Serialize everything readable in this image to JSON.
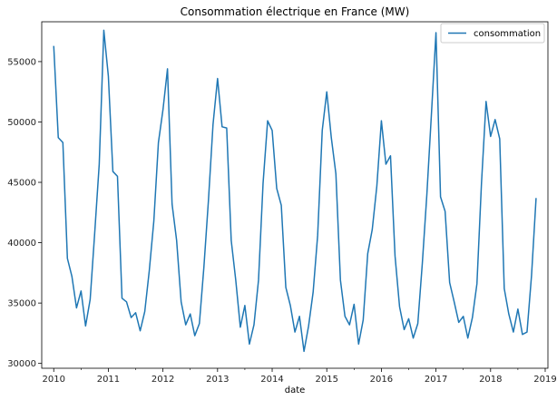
{
  "chart_data": {
    "type": "line",
    "title": "Consommation électrique en France (MW)",
    "xlabel": "date",
    "ylabel": "",
    "legend": {
      "placement": "top-right",
      "entries": [
        "consommation"
      ]
    },
    "grid": false,
    "xlim": [
      2009.78,
      2019.05
    ],
    "ylim": [
      29600,
      58300
    ],
    "x_ticks": [
      2010,
      2011,
      2012,
      2013,
      2014,
      2015,
      2016,
      2017,
      2018,
      2019
    ],
    "y_ticks": [
      30000,
      35000,
      40000,
      45000,
      50000,
      55000
    ],
    "series": [
      {
        "name": "consommation",
        "color": "#1f77b4",
        "x": [
          2010.0,
          2010.083,
          2010.167,
          2010.25,
          2010.333,
          2010.417,
          2010.5,
          2010.583,
          2010.667,
          2010.75,
          2010.833,
          2010.917,
          2011.0,
          2011.083,
          2011.167,
          2011.25,
          2011.333,
          2011.417,
          2011.5,
          2011.583,
          2011.667,
          2011.75,
          2011.833,
          2011.917,
          2012.0,
          2012.083,
          2012.167,
          2012.25,
          2012.333,
          2012.417,
          2012.5,
          2012.583,
          2012.667,
          2012.75,
          2012.833,
          2012.917,
          2013.0,
          2013.083,
          2013.167,
          2013.25,
          2013.333,
          2013.417,
          2013.5,
          2013.583,
          2013.667,
          2013.75,
          2013.833,
          2013.917,
          2014.0,
          2014.083,
          2014.167,
          2014.25,
          2014.333,
          2014.417,
          2014.5,
          2014.583,
          2014.667,
          2014.75,
          2014.833,
          2014.917,
          2015.0,
          2015.083,
          2015.167,
          2015.25,
          2015.333,
          2015.417,
          2015.5,
          2015.583,
          2015.667,
          2015.75,
          2015.833,
          2015.917,
          2016.0,
          2016.083,
          2016.167,
          2016.25,
          2016.333,
          2016.417,
          2016.5,
          2016.583,
          2016.667,
          2016.75,
          2016.833,
          2016.917,
          2017.0,
          2017.083,
          2017.167,
          2017.25,
          2017.333,
          2017.417,
          2017.5,
          2017.583,
          2017.667,
          2017.75,
          2017.833,
          2017.917,
          2018.0,
          2018.083,
          2018.167,
          2018.25,
          2018.333,
          2018.417,
          2018.5,
          2018.583,
          2018.667,
          2018.75,
          2018.833
        ],
        "values": [
          56300,
          48700,
          48300,
          38700,
          37200,
          34600,
          36000,
          33100,
          35300,
          40800,
          46500,
          57600,
          53800,
          45900,
          45500,
          35400,
          35100,
          33800,
          34200,
          32700,
          34300,
          37700,
          41800,
          48300,
          51000,
          54400,
          43200,
          40200,
          35100,
          33200,
          34100,
          32300,
          33300,
          38000,
          43500,
          49800,
          53600,
          49600,
          49500,
          40200,
          36900,
          33000,
          34800,
          31600,
          33200,
          36900,
          44900,
          50100,
          49300,
          44500,
          43100,
          36300,
          34800,
          32600,
          33900,
          31000,
          33100,
          35900,
          40600,
          49300,
          52500,
          48700,
          45700,
          36900,
          33900,
          33200,
          34900,
          31600,
          33600,
          39100,
          41100,
          44700,
          50100,
          46500,
          47200,
          38900,
          34700,
          32800,
          33700,
          32100,
          33300,
          38300,
          44000,
          50700,
          57400,
          43800,
          42600,
          36700,
          35100,
          33400,
          33900,
          32100,
          33800,
          36600,
          44900,
          51700,
          48800,
          50200,
          48600,
          36200,
          34100,
          32600,
          34500,
          32400,
          32600,
          37300,
          43700
        ]
      }
    ]
  }
}
